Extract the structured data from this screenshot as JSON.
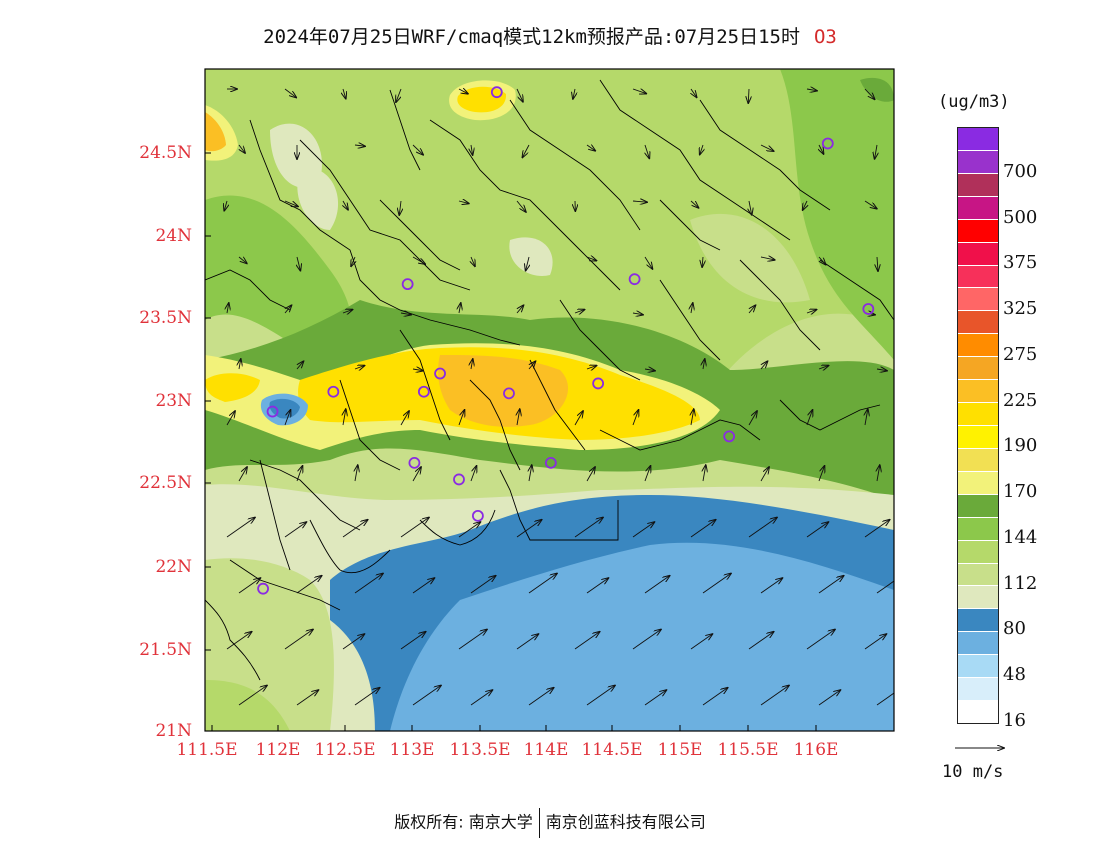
{
  "title": {
    "text": "2024年07月25日WRF/cmaq模式12km预报产品:07月25日15时",
    "variable": "O3"
  },
  "map": {
    "lat_ticks": [
      "24.5N",
      "24N",
      "23.5N",
      "23N",
      "22.5N",
      "22N",
      "21.5N",
      "21N"
    ],
    "lon_ticks": [
      "111.5E",
      "112E",
      "112.5E",
      "113E",
      "113.5E",
      "114E",
      "114.5E",
      "115E",
      "115.5E",
      "116E"
    ],
    "lat_range": [
      21.0,
      25.0
    ],
    "lon_range": [
      111.5,
      116.6
    ]
  },
  "legend": {
    "unit": "(ug/m3)",
    "levels": [
      {
        "label": "",
        "color": "#8a2be2"
      },
      {
        "label": "700",
        "color": "#9932cc"
      },
      {
        "label": "",
        "color": "#b0305a"
      },
      {
        "label": "500",
        "color": "#c71585"
      },
      {
        "label": "",
        "color": "#ff0000"
      },
      {
        "label": "375",
        "color": "#f0104a"
      },
      {
        "label": "",
        "color": "#f7305a"
      },
      {
        "label": "325",
        "color": "#ff6666"
      },
      {
        "label": "",
        "color": "#e8552a"
      },
      {
        "label": "275",
        "color": "#ff8c00"
      },
      {
        "label": "",
        "color": "#f5a623"
      },
      {
        "label": "225",
        "color": "#fbbf24"
      },
      {
        "label": "",
        "color": "#ffe000"
      },
      {
        "label": "190",
        "color": "#fff200"
      },
      {
        "label": "",
        "color": "#f2e053"
      },
      {
        "label": "170",
        "color": "#f2f27a"
      },
      {
        "label": "",
        "color": "#6aaa3a"
      },
      {
        "label": "144",
        "color": "#8cc84b"
      },
      {
        "label": "",
        "color": "#b5d96a"
      },
      {
        "label": "112",
        "color": "#c8df8a"
      },
      {
        "label": "",
        "color": "#dfe8be"
      },
      {
        "label": "80",
        "color": "#3a87c0"
      },
      {
        "label": "",
        "color": "#6cb0e0"
      },
      {
        "label": "48",
        "color": "#a8daf5"
      },
      {
        "label": "",
        "color": "#d8eefa"
      },
      {
        "label": "16",
        "color": "#ffffff"
      }
    ],
    "reference_vector": "10 m/s"
  },
  "stations": [
    {
      "lon": 113.66,
      "lat": 24.86
    },
    {
      "lon": 116.11,
      "lat": 24.55
    },
    {
      "lon": 113.0,
      "lat": 23.7
    },
    {
      "lon": 114.68,
      "lat": 23.73
    },
    {
      "lon": 116.41,
      "lat": 23.55
    },
    {
      "lon": 113.24,
      "lat": 23.16
    },
    {
      "lon": 112.45,
      "lat": 23.05
    },
    {
      "lon": 113.12,
      "lat": 23.05
    },
    {
      "lon": 113.75,
      "lat": 23.04
    },
    {
      "lon": 114.41,
      "lat": 23.1
    },
    {
      "lon": 112.0,
      "lat": 22.93
    },
    {
      "lon": 115.38,
      "lat": 22.78
    },
    {
      "lon": 113.05,
      "lat": 22.62
    },
    {
      "lon": 114.06,
      "lat": 22.62
    },
    {
      "lon": 113.38,
      "lat": 22.52
    },
    {
      "lon": 113.52,
      "lat": 22.3
    },
    {
      "lon": 111.93,
      "lat": 21.86
    }
  ],
  "copyright": {
    "owner_label": "版权所有:",
    "org1": "南京大学",
    "org2": "南京创蓝科技有限公司"
  }
}
